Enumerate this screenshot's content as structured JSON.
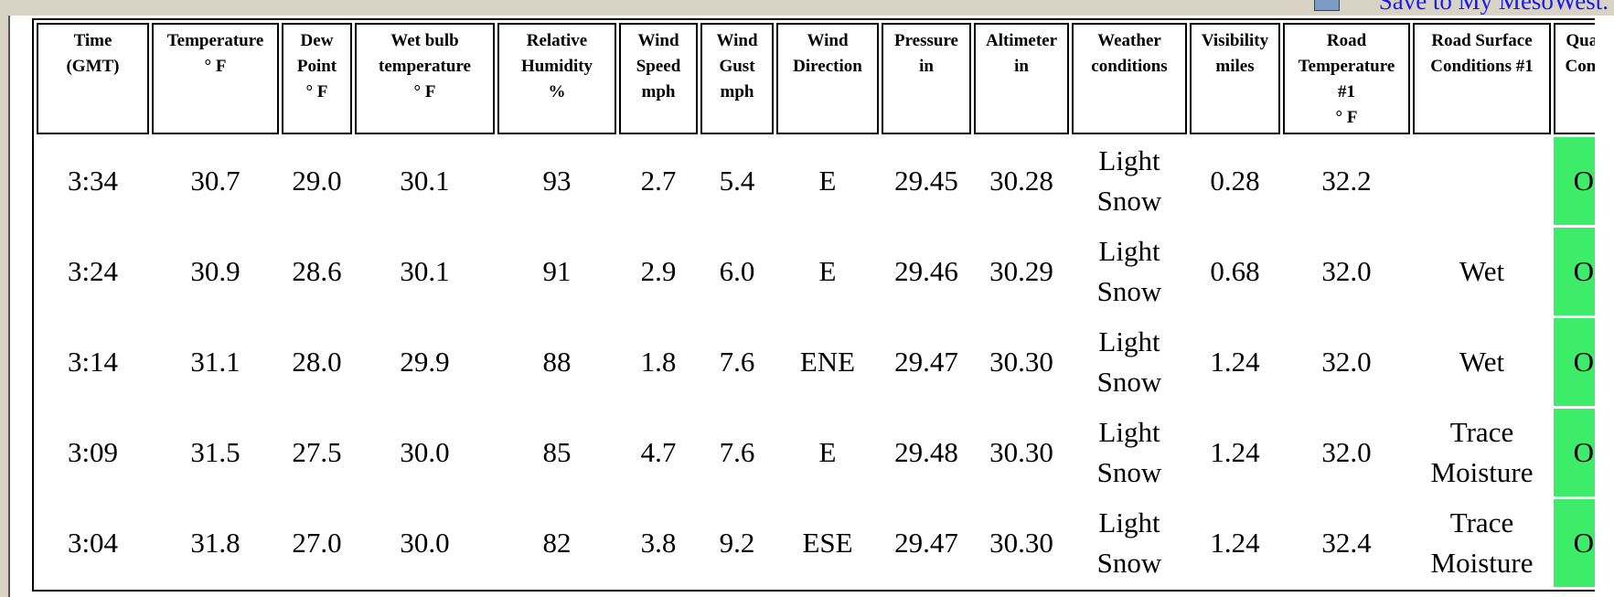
{
  "link": "Save to My MesoWest.",
  "table": {
    "headers": [
      [
        "Time",
        "(GMT)"
      ],
      [
        "Temperature",
        "° F"
      ],
      [
        "Dew",
        "Point",
        "° F"
      ],
      [
        "Wet bulb",
        "temperature",
        "° F"
      ],
      [
        "Relative",
        "Humidity",
        "%"
      ],
      [
        "Wind",
        "Speed",
        "mph"
      ],
      [
        "Wind",
        "Gust",
        "mph"
      ],
      [
        "Wind",
        "Direction"
      ],
      [
        "Pressure",
        "in"
      ],
      [
        "Altimeter",
        "in"
      ],
      [
        "Weather",
        "conditions"
      ],
      [
        "Visibility",
        "miles"
      ],
      [
        "Road",
        "Temperature",
        "#1",
        "° F"
      ],
      [
        "Road Surface",
        "Conditions #1"
      ],
      [
        "Quality",
        "Control"
      ]
    ],
    "rows": [
      [
        "3:34",
        "30.7",
        "29.0",
        "30.1",
        "93",
        "2.7",
        "5.4",
        "E",
        "29.45",
        "30.28",
        "Light Snow",
        "0.28",
        "32.2",
        null,
        "OK"
      ],
      [
        "3:24",
        "30.9",
        "28.6",
        "30.1",
        "91",
        "2.9",
        "6.0",
        "E",
        "29.46",
        "30.29",
        "Light Snow",
        "0.68",
        "32.0",
        "Wet",
        "OK"
      ],
      [
        "3:14",
        "31.1",
        "28.0",
        "29.9",
        "88",
        "1.8",
        "7.6",
        "ENE",
        "29.47",
        "30.30",
        "Light Snow",
        "1.24",
        "32.0",
        "Wet",
        "OK"
      ],
      [
        "3:09",
        "31.5",
        "27.5",
        "30.0",
        "85",
        "4.7",
        "7.6",
        "E",
        "29.48",
        "30.30",
        "Light Snow",
        "1.24",
        "32.0",
        "Trace Moisture",
        "OK"
      ],
      [
        "3:04",
        "31.8",
        "27.0",
        "30.0",
        "82",
        "3.8",
        "9.2",
        "ESE",
        "29.47",
        "30.30",
        "Light Snow",
        "1.24",
        "32.4",
        "Trace Moisture",
        "OK"
      ]
    ]
  }
}
